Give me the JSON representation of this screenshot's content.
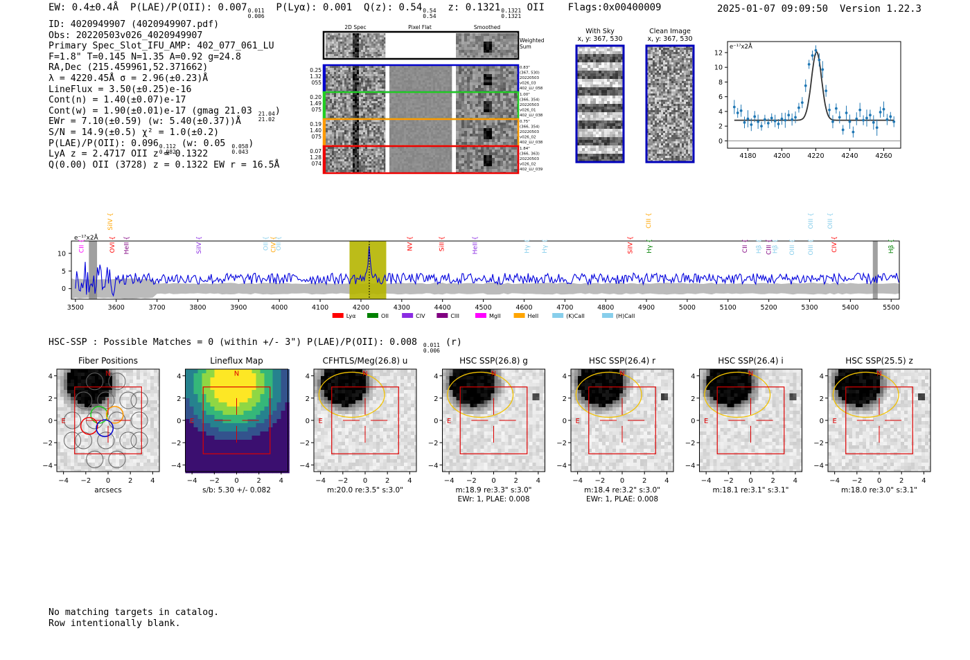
{
  "header": {
    "ew": "EW: 0.4±0.4Å",
    "plae_label": "P(LAE)/P(OII): 0.007",
    "plae_hi": "0.011",
    "plae_lo": "0.006",
    "plya": "P(Lyα): 0.001",
    "qz_label": "Q(z): 0.54",
    "qz_hi": "0.54",
    "qz_lo": "0.54",
    "z_label": "z: 0.1321",
    "z_hi": "0.1321",
    "z_lo": "0.1321",
    "z_line": "OII",
    "flags": "Flags:0x00400009",
    "timestamp": "2025-01-07 09:09:50",
    "version": "Version 1.22.3"
  },
  "info": {
    "id": "ID: 4020949907 (4020949907.pdf)",
    "obs": "Obs: 20220503v026_4020949907",
    "primary": "Primary Spec_Slot_IFU_AMP: 402_077_061_LU",
    "params": "F=1.8\"  T=0.145  N=1.35  A=0.92  g=24.8",
    "radec": "RA,Dec (215.459961,52.371662)",
    "lambda": "λ = 4220.45Å  σ = 2.96(±0.23)Å",
    "lineflux": "LineFlux = 3.50(±0.25)e-16",
    "contn": "Cont(n) = 1.40(±0.07)e-17",
    "contw": "Cont(w) = 1.90(±0.01)e-17 (gmag 21.03",
    "contw_hi": "21.04",
    "contw_lo": "21.02",
    "ewr": "EWr = 7.10(±0.59) (w: 5.40(±0.37))Å",
    "sn": "S/N = 14.9(±0.5)  χ² = 1.0(±0.2)",
    "plae": "P(LAE)/P(OII): 0.096",
    "plae_hi": "0.112",
    "plae_lo": "0.082",
    "plae_w": "(w: 0.05",
    "plae_w_hi": "0.058",
    "plae_w_lo": "0.043",
    "lya": "LyA z = 2.4717  OII z = 0.1322",
    "q": "Q(0.00) OII (3728) z = 0.1322  EW r = 16.5Å"
  },
  "cutouts": {
    "col_titles": [
      "2D Spec",
      "Pixel Flat",
      "Smoothed"
    ],
    "weighted_label": "Weighted\nSum",
    "rows": [
      {
        "left": [
          "0.25",
          "1.32",
          "055"
        ],
        "right": [
          "0.83\"",
          "(367, 530)",
          "20220503",
          "v026_03",
          "402_LU_058"
        ],
        "color": "#0000cc"
      },
      {
        "left": [
          "0.20",
          "1.49",
          "075"
        ],
        "right": [
          "1.00\"",
          "(366, 354)",
          "20220503",
          "v026_01",
          "402_LU_038"
        ],
        "color": "#22cc22"
      },
      {
        "left": [
          "0.19",
          "1.40",
          "075"
        ],
        "right": [
          "0.75\"",
          "(366, 354)",
          "20220503",
          "v026_02",
          "402_LU_038"
        ],
        "color": "#ff9900"
      },
      {
        "left": [
          "0.07",
          "1.28",
          "074"
        ],
        "right": [
          "1.84\"",
          "(366, 363)",
          "20220503",
          "v026_02",
          "402_LU_039"
        ],
        "color": "#ee0000"
      }
    ]
  },
  "sky_panels": [
    {
      "title": "With Sky",
      "subtitle": "x, y: 367, 530"
    },
    {
      "title": "Clean Image",
      "subtitle": "x, y: 367, 530"
    }
  ],
  "chart_data": [
    {
      "type": "scatter",
      "name": "zoom-line-fit",
      "ylabel": "e⁻¹⁷x2Å",
      "xlim": [
        4168,
        4270
      ],
      "ylim": [
        -1,
        13.5
      ],
      "xticks": [
        4180,
        4200,
        4220,
        4240,
        4260
      ],
      "yticks": [
        0,
        2,
        4,
        6,
        8,
        10,
        12
      ],
      "points": [
        [
          4172,
          4.6
        ],
        [
          4174,
          3.8
        ],
        [
          4176,
          4.1
        ],
        [
          4178,
          2.5
        ],
        [
          4180,
          3.0
        ],
        [
          4182,
          2.2
        ],
        [
          4184,
          3.3
        ],
        [
          4186,
          2.6
        ],
        [
          4188,
          2.0
        ],
        [
          4190,
          2.9
        ],
        [
          4192,
          2.4
        ],
        [
          4194,
          3.1
        ],
        [
          4196,
          2.7
        ],
        [
          4198,
          2.3
        ],
        [
          4200,
          3.0
        ],
        [
          4202,
          2.8
        ],
        [
          4204,
          3.5
        ],
        [
          4206,
          2.9
        ],
        [
          4208,
          3.2
        ],
        [
          4210,
          4.5
        ],
        [
          4212,
          5.2
        ],
        [
          4214,
          7.5
        ],
        [
          4216,
          10.4
        ],
        [
          4218,
          11.6
        ],
        [
          4220,
          12.3
        ],
        [
          4222,
          11.0
        ],
        [
          4224,
          9.7
        ],
        [
          4226,
          6.8
        ],
        [
          4228,
          4.2
        ],
        [
          4230,
          2.6
        ],
        [
          4232,
          4.4
        ],
        [
          4234,
          3.2
        ],
        [
          4236,
          1.5
        ],
        [
          4238,
          3.8
        ],
        [
          4240,
          2.6
        ],
        [
          4242,
          1.2
        ],
        [
          4244,
          3.0
        ],
        [
          4246,
          4.2
        ],
        [
          4248,
          2.8
        ],
        [
          4250,
          3.1
        ],
        [
          4252,
          3.5
        ],
        [
          4254,
          2.5
        ],
        [
          4256,
          1.8
        ],
        [
          4258,
          3.9
        ],
        [
          4260,
          4.3
        ],
        [
          4262,
          2.9
        ],
        [
          4264,
          3.3
        ],
        [
          4266,
          2.6
        ]
      ],
      "fit": {
        "center": 4220.45,
        "sigma": 2.96,
        "amplitude": 9.3,
        "continuum": 2.8
      }
    },
    {
      "type": "line",
      "name": "full-spectrum",
      "ylabel": "e⁻¹⁷x2Å",
      "xlim": [
        3490,
        5520
      ],
      "ylim": [
        -3,
        13.5
      ],
      "xticks": [
        3500,
        3600,
        3700,
        3800,
        3900,
        4000,
        4100,
        4200,
        4300,
        4400,
        4500,
        4600,
        4700,
        4800,
        4900,
        5000,
        5100,
        5200,
        5300,
        5400,
        5500
      ],
      "yticks": [
        0,
        5,
        10
      ],
      "continuum": 2.8,
      "highlight_range": [
        4172,
        4262
      ],
      "masked_ranges": [
        [
          3533,
          3553
        ],
        [
          5455,
          5467
        ]
      ],
      "line_center": 4220.45,
      "legend": [
        {
          "label": "Lyα",
          "color": "#ff0000"
        },
        {
          "label": "OII",
          "color": "#008000"
        },
        {
          "label": "CIV",
          "color": "#8a2be2"
        },
        {
          "label": "CIII",
          "color": "#800080"
        },
        {
          "label": "MgII",
          "color": "#ff00ff"
        },
        {
          "label": "HeII",
          "color": "#ffa500"
        },
        {
          "label": "(K)CaII",
          "color": "#87ceeb"
        },
        {
          "label": "(H)CaII",
          "color": "#87ceeb"
        }
      ],
      "line_labels": [
        {
          "label": "CII",
          "x": 3520,
          "row": 2,
          "color": "#ff00ff"
        },
        {
          "label": "SiIV",
          "x": 3590,
          "row": 0,
          "color": "#ffa500"
        },
        {
          "label": "OVI",
          "x": 3595,
          "row": 1,
          "color": "#ff0000"
        },
        {
          "label": "HeII",
          "x": 3630,
          "row": 1,
          "color": "#800080"
        },
        {
          "label": "SiIV",
          "x": 3808,
          "row": 1,
          "color": "#8a2be2"
        },
        {
          "label": "OII",
          "x": 3972,
          "row": 1,
          "color": "#87ceeb"
        },
        {
          "label": "CIV",
          "x": 3990,
          "row": 1,
          "color": "#ffa500"
        },
        {
          "label": "OII",
          "x": 4003,
          "row": 1,
          "color": "#87ceeb"
        },
        {
          "label": "NV",
          "x": 4325,
          "row": 1,
          "color": "#ff0000"
        },
        {
          "label": "SiII",
          "x": 4403,
          "row": 1,
          "color": "#ff0000"
        },
        {
          "label": "HeII",
          "x": 4485,
          "row": 1,
          "color": "#8a2be2"
        },
        {
          "label": "Hγ",
          "x": 4612,
          "row": 2,
          "color": "#87ceeb"
        },
        {
          "label": "Hγ",
          "x": 4655,
          "row": 2,
          "color": "#87ceeb"
        },
        {
          "label": "SiIV",
          "x": 4865,
          "row": 1,
          "color": "#ff0000"
        },
        {
          "label": "CIII",
          "x": 4910,
          "row": 0,
          "color": "#ffa500"
        },
        {
          "label": "Hγ",
          "x": 4912,
          "row": 2,
          "color": "#008000"
        },
        {
          "label": "CII",
          "x": 5146,
          "row": 2,
          "color": "#800080"
        },
        {
          "label": "Hβ",
          "x": 5180,
          "row": 2,
          "color": "#87ceeb"
        },
        {
          "label": "CIII",
          "x": 5205,
          "row": 2,
          "color": "#800080"
        },
        {
          "label": "Hβ",
          "x": 5220,
          "row": 2,
          "color": "#87ceeb"
        },
        {
          "label": "OIII",
          "x": 5262,
          "row": 2,
          "color": "#87ceeb"
        },
        {
          "label": "OIII",
          "x": 5308,
          "row": 0,
          "color": "#87ceeb"
        },
        {
          "label": "OIII",
          "x": 5308,
          "row": 2,
          "color": "#87ceeb"
        },
        {
          "label": "OIII",
          "x": 5355,
          "row": 0,
          "color": "#87ceeb"
        },
        {
          "label": "CIV",
          "x": 5365,
          "row": 1,
          "color": "#ff0000"
        },
        {
          "label": "Hβ",
          "x": 5505,
          "row": 2,
          "color": "#008000"
        }
      ]
    }
  ],
  "hsc": {
    "title": "HSC-SSP : Possible Matches = 0 (within +/- 3\")  P(LAE)/P(OII): 0.008",
    "hi": "0.011",
    "lo": "0.006",
    "suffix": "(r)"
  },
  "thumbnails": [
    {
      "title": "Fiber Positions",
      "caption1": "arcsecs",
      "caption2": "",
      "kind": "fibers"
    },
    {
      "title": "Lineflux Map",
      "caption1": "s/b: 5.30 +/- 0.082",
      "caption2": "",
      "kind": "lineflux"
    },
    {
      "title": "CFHTLS/Meg(26.8) u",
      "caption1": "m:20.0  re:3.5\"  s:3.0\"",
      "caption2": "",
      "kind": "u"
    },
    {
      "title": "HSC SSP(26.8) g",
      "caption1": "m:18.9  re:3.3\"  s:3.0\"",
      "caption2": "EWr: 1, PLAE: 0.008",
      "kind": "g"
    },
    {
      "title": "HSC SSP(26.4) r",
      "caption1": "m:18.4  re:3.2\"  s:3.0\"",
      "caption2": "EWr: 1, PLAE: 0.008",
      "kind": "r"
    },
    {
      "title": "HSC SSP(26.4) i",
      "caption1": "m:18.1  re:3.1\"  s:3.1\"",
      "caption2": "",
      "kind": "i"
    },
    {
      "title": "HSC SSP(25.5) z",
      "caption1": "m:18.0  re:3.0\"  s:3.1\"",
      "caption2": "",
      "kind": "z"
    }
  ],
  "thumb_axes": {
    "ticks": [
      -4,
      -2,
      0,
      2,
      4
    ],
    "north": "N",
    "east": "E"
  },
  "footer": {
    "line1": "No matching targets in catalog.",
    "line2": "Row intentionally blank."
  }
}
